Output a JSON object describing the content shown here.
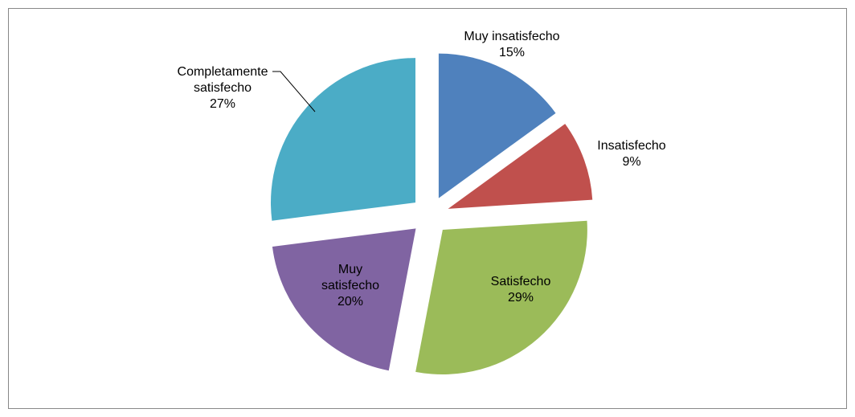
{
  "chart_data": {
    "type": "pie",
    "categories": [
      "Muy insatisfecho",
      "Insatisfecho",
      "Satisfecho",
      "Muy satisfecho",
      "Completamente satisfecho"
    ],
    "values": [
      15,
      9,
      29,
      20,
      27
    ],
    "value_labels": [
      "15%",
      "9%",
      "29%",
      "20%",
      "27%"
    ],
    "colors": [
      "#4f81bd",
      "#c0504d",
      "#9bbb59",
      "#8064a2",
      "#4bacc6"
    ],
    "exploded": true
  }
}
